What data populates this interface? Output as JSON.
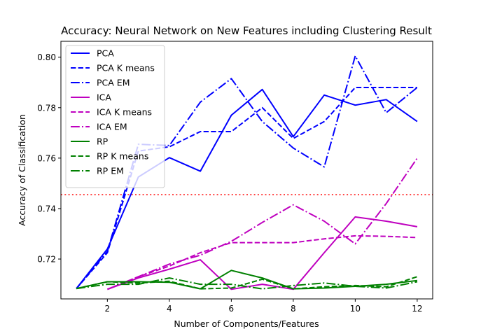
{
  "chart_data": {
    "type": "line",
    "title": "Accuracy: Neural Network on New Features including Clustering Result",
    "xlabel": "Number of Components/Features",
    "ylabel": "Accuracy of Classification",
    "xlim": [
      0.5,
      12.5
    ],
    "ylim": [
      0.7042,
      0.8063
    ],
    "x_ticks": [
      2,
      4,
      6,
      8,
      10,
      12
    ],
    "y_ticks": [
      0.72,
      0.74,
      0.76,
      0.78,
      0.8
    ],
    "grid": false,
    "legend_position": "top-left",
    "x": [
      1,
      2,
      3,
      4,
      5,
      6,
      7,
      8,
      9,
      10,
      11,
      12
    ],
    "series": [
      {
        "name": "PCA",
        "color": "#0000ff",
        "style": "solid",
        "values": [
          0.7083,
          0.724,
          0.7525,
          0.7602,
          0.7548,
          0.777,
          0.7872,
          0.7685,
          0.785,
          0.781,
          0.7832,
          0.7745
        ]
      },
      {
        "name": "PCA K means",
        "color": "#0000ff",
        "style": "dashed",
        "values": [
          0.7083,
          0.7225,
          0.7628,
          0.7645,
          0.7705,
          0.7705,
          0.78,
          0.7678,
          0.7745,
          0.788,
          0.788,
          0.788
        ]
      },
      {
        "name": "PCA EM",
        "color": "#0000ff",
        "style": "dashdot",
        "values": [
          0.7083,
          0.723,
          0.7655,
          0.765,
          0.7822,
          0.7915,
          0.7745,
          0.764,
          0.7565,
          0.8005,
          0.778,
          0.788
        ]
      },
      {
        "name": "ICA",
        "color": "#bf00bf",
        "style": "solid",
        "values": [
          null,
          0.708,
          0.7125,
          0.716,
          0.7197,
          0.708,
          0.71,
          0.708,
          0.7225,
          0.7367,
          0.735,
          0.7328
        ]
      },
      {
        "name": "ICA K means",
        "color": "#bf00bf",
        "style": "dashed",
        "values": [
          null,
          0.708,
          0.713,
          0.7172,
          0.7225,
          0.7265,
          0.7265,
          0.7265,
          0.728,
          0.7292,
          0.729,
          0.7285
        ]
      },
      {
        "name": "ICA EM",
        "color": "#bf00bf",
        "style": "dashdot",
        "values": [
          null,
          0.708,
          0.713,
          0.718,
          0.7215,
          0.727,
          0.7345,
          0.7415,
          0.735,
          0.726,
          0.742,
          0.76
        ]
      },
      {
        "name": "RP",
        "color": "#008000",
        "style": "solid",
        "values": [
          0.7083,
          0.711,
          0.711,
          0.7108,
          0.7082,
          0.7155,
          0.7125,
          0.7082,
          0.7085,
          0.7092,
          0.71,
          0.7115
        ]
      },
      {
        "name": "RP K means",
        "color": "#008000",
        "style": "dashed",
        "values": [
          0.7083,
          0.711,
          0.7105,
          0.7112,
          0.7082,
          0.7085,
          0.712,
          0.7082,
          0.709,
          0.7095,
          0.709,
          0.713
        ]
      },
      {
        "name": "RP EM",
        "color": "#008000",
        "style": "dashdot",
        "values": [
          0.7083,
          0.71,
          0.71,
          0.7125,
          0.71,
          0.71,
          0.7082,
          0.7095,
          0.7105,
          0.7092,
          0.7085,
          0.711
        ]
      }
    ],
    "reference_line": {
      "y": 0.7455,
      "color": "#ff0000",
      "style": "dotted"
    }
  }
}
